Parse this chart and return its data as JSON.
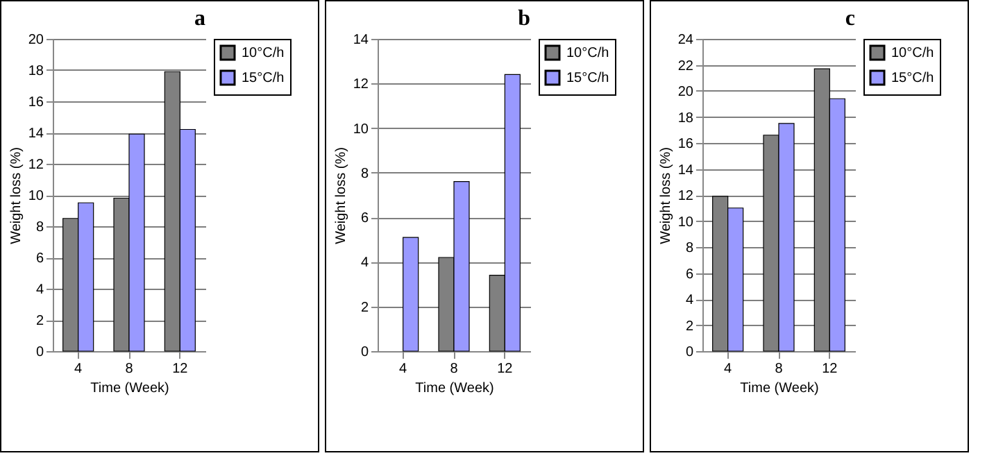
{
  "chart_data": [
    {
      "type": "bar",
      "annotations": [
        "a"
      ],
      "xlabel": "Time (Week)",
      "ylabel": "Weight loss (%)",
      "categories": [
        "4",
        "8",
        "12"
      ],
      "series": [
        {
          "name": "10°C/h",
          "color": "#808080",
          "values": [
            8.5,
            9.8,
            17.9
          ]
        },
        {
          "name": "15°C/h",
          "color": "#9999ff",
          "values": [
            9.5,
            13.9,
            14.2
          ]
        }
      ],
      "ylim": [
        0,
        20
      ],
      "yticks": [
        0,
        2,
        4,
        6,
        8,
        10,
        12,
        14,
        16,
        18,
        20
      ],
      "grid": "y",
      "legend": "right"
    },
    {
      "type": "bar",
      "annotations": [
        "b"
      ],
      "xlabel": "Time (Week)",
      "ylabel": "Weight loss (%)",
      "categories": [
        "4",
        "8",
        "12"
      ],
      "series": [
        {
          "name": "10°C/h",
          "color": "#808080",
          "values": [
            null,
            4.2,
            3.4
          ]
        },
        {
          "name": "15°C/h",
          "color": "#9999ff",
          "values": [
            5.1,
            7.6,
            12.4
          ]
        }
      ],
      "ylim": [
        0,
        14
      ],
      "yticks": [
        0,
        2,
        4,
        6,
        8,
        10,
        12,
        14
      ],
      "grid": "y",
      "legend": "right"
    },
    {
      "type": "bar",
      "annotations": [
        "c"
      ],
      "xlabel": "Time (Week)",
      "ylabel": "Weight loss (%)",
      "categories": [
        "4",
        "8",
        "12"
      ],
      "series": [
        {
          "name": "10°C/h",
          "color": "#808080",
          "values": [
            11.9,
            16.6,
            21.7
          ]
        },
        {
          "name": "15°C/h",
          "color": "#9999ff",
          "values": [
            11.0,
            17.5,
            19.4
          ]
        }
      ],
      "ylim": [
        0,
        24
      ],
      "yticks": [
        0,
        2,
        4,
        6,
        8,
        10,
        12,
        14,
        16,
        18,
        20,
        22,
        24
      ],
      "grid": "y",
      "legend": "right"
    }
  ]
}
